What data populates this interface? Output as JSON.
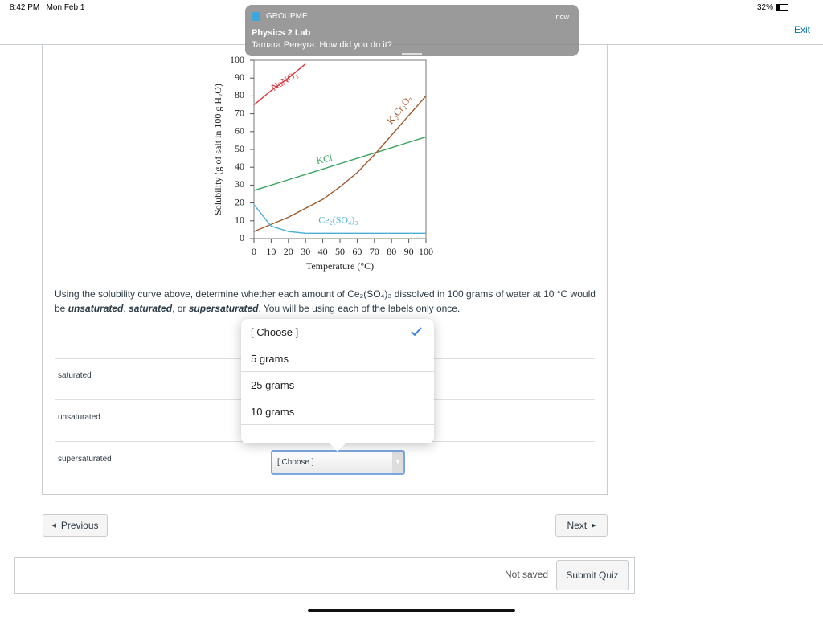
{
  "status_bar": {
    "time": "8:42 PM",
    "date": "Mon Feb 1",
    "battery": "32%"
  },
  "notification": {
    "app": "GROUPME",
    "time": "now",
    "title": "Physics 2 Lab",
    "message": "Tamara Pereyra: How did you do it?"
  },
  "nav": {
    "exit": "Exit"
  },
  "chart_data": {
    "type": "line",
    "xlabel": "Temperature (°C)",
    "ylabel": "Solubility (g of salt in 100 g H₂O)",
    "x": [
      0,
      10,
      20,
      30,
      40,
      50,
      60,
      70,
      80,
      90,
      100
    ],
    "xlim": [
      0,
      100
    ],
    "xticks": [
      0,
      10,
      20,
      30,
      40,
      50,
      60,
      70,
      80,
      90,
      100
    ],
    "ylim": [
      0,
      100
    ],
    "yticks": [
      0,
      10,
      20,
      30,
      40,
      50,
      60,
      70,
      80,
      90,
      100
    ],
    "series": [
      {
        "name": "NaNO₃",
        "color": "#d9363e",
        "values": [
          75,
          83,
          90,
          98,
          null,
          null,
          null,
          null,
          null,
          null,
          null
        ]
      },
      {
        "name": "KCl",
        "color": "#3aa45f",
        "values": [
          27,
          30,
          33,
          36,
          39,
          42,
          45,
          48,
          51,
          54,
          57
        ]
      },
      {
        "name": "K₂Cr₂O₇",
        "color": "#a0582a",
        "values": [
          4,
          8,
          12,
          17,
          22,
          29,
          37,
          47,
          58,
          69,
          80
        ]
      },
      {
        "name": "Ce₂(SO₄)₃",
        "color": "#4ab0d8",
        "values": [
          19,
          7,
          4,
          3,
          3,
          3,
          3,
          3,
          3,
          3,
          3
        ]
      }
    ]
  },
  "question": {
    "segments": [
      {
        "text": "Using the solubility curve above, determine whether each amount of Ce₂(SO₄)₃ dissolved in 100 grams of water at 10 °C would be ",
        "bold": false
      },
      {
        "text": "unsaturated",
        "bold": true
      },
      {
        "text": ", ",
        "bold": false
      },
      {
        "text": "saturated",
        "bold": true
      },
      {
        "text": ", or ",
        "bold": false
      },
      {
        "text": "supersaturated",
        "bold": true
      },
      {
        "text": ". You will be using each of the labels only once.",
        "bold": false
      }
    ]
  },
  "dropdown": {
    "options": [
      "[ Choose ]",
      "5 grams",
      "25 grams",
      "10 grams"
    ]
  },
  "answers": {
    "rows": [
      "saturated",
      "unsaturated",
      "supersaturated"
    ],
    "select": "[ Choose ]"
  },
  "buttons": {
    "previous": "Previous",
    "next": "Next",
    "status": "Not saved",
    "submit": "Submit Quiz"
  }
}
